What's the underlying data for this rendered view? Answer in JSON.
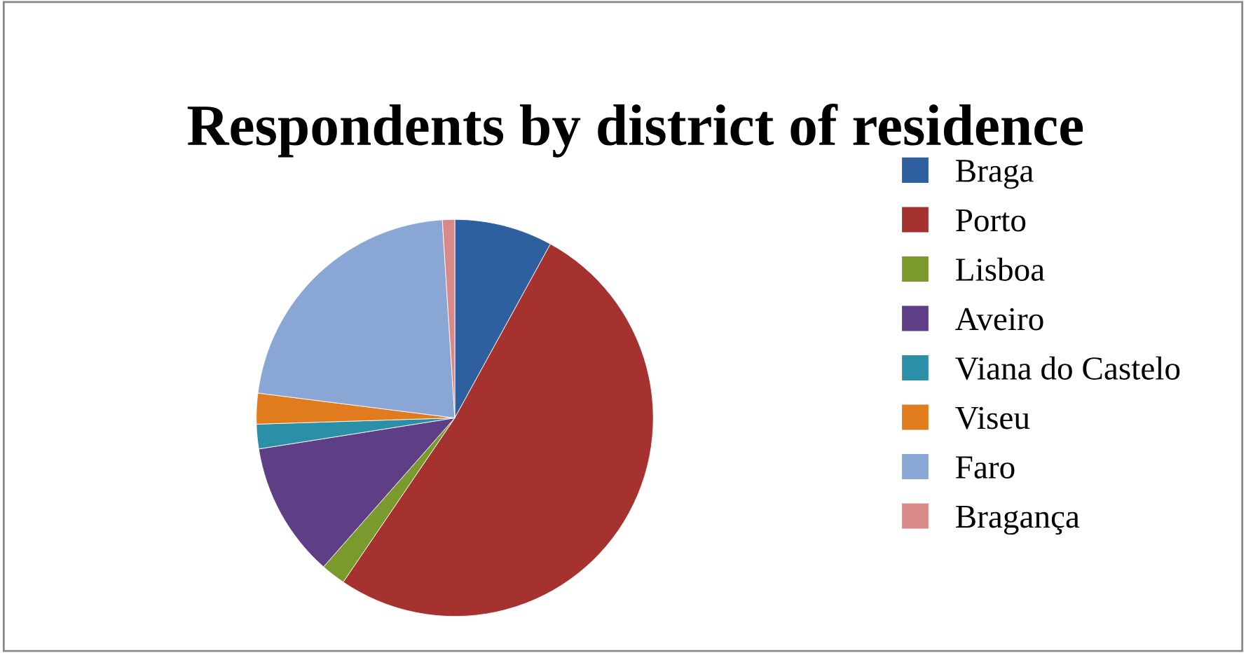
{
  "chart_data": {
    "type": "pie",
    "title": "Respondents by district of residence",
    "categories": [
      "Braga",
      "Porto",
      "Lisboa",
      "Aveiro",
      "Viana do Castelo",
      "Viseu",
      "Faro",
      "Bragança"
    ],
    "values": [
      8,
      51.5,
      2,
      11,
      2,
      2.5,
      22,
      1
    ],
    "colors": [
      "#2e5f9e",
      "#a63230",
      "#7a9a2e",
      "#5e3f85",
      "#2b8fa8",
      "#e07b1e",
      "#8aa6d4",
      "#d98a88"
    ],
    "legend": "right"
  }
}
